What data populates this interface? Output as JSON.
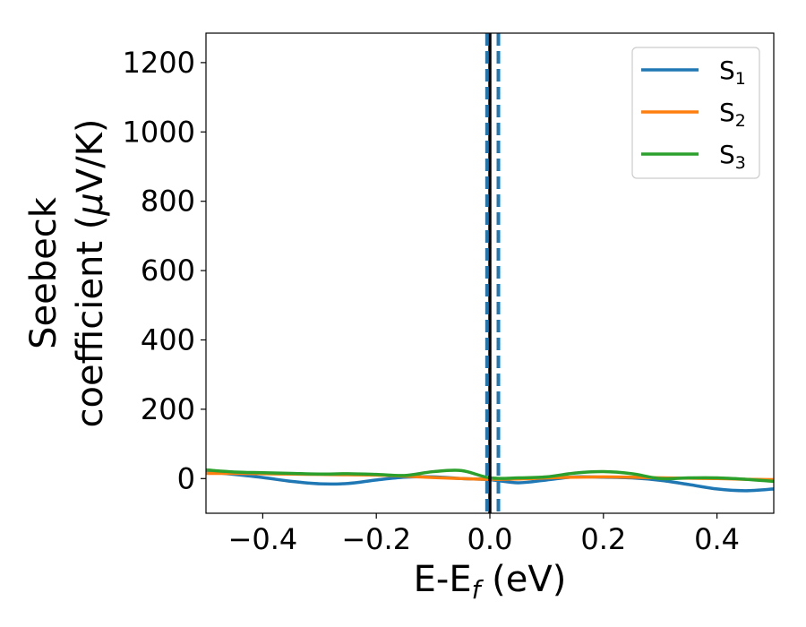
{
  "chart_data": {
    "type": "line",
    "title": "",
    "xlabel": {
      "main": "E-E",
      "sub": "f",
      "rest": " (eV)"
    },
    "ylabel": {
      "line1": "Seebeck",
      "line2_prefix": "coefficient  (",
      "line2_mu": "μ",
      "line2_suffix": "V/K)"
    },
    "xlim": [
      -0.5,
      0.5
    ],
    "ylim": [
      -100,
      1285
    ],
    "xticks": [
      -0.4,
      -0.2,
      0.0,
      0.2,
      0.4
    ],
    "xtick_labels": [
      "−0.4",
      "−0.2",
      "0.0",
      "0.2",
      "0.4"
    ],
    "yticks": [
      0,
      200,
      400,
      600,
      800,
      1000,
      1200
    ],
    "ytick_labels": [
      "0",
      "200",
      "400",
      "600",
      "800",
      "1000",
      "1200"
    ],
    "grid": false,
    "legend_position": "top-right",
    "series": [
      {
        "name": {
          "base": "S",
          "sub": "1"
        },
        "color": "#1f77b4",
        "x": [
          -0.5,
          -0.45,
          -0.4,
          -0.35,
          -0.3,
          -0.25,
          -0.2,
          -0.15,
          -0.1,
          -0.05,
          0.0,
          0.05,
          0.1,
          0.15,
          0.2,
          0.25,
          0.3,
          0.35,
          0.4,
          0.45,
          0.5
        ],
        "y": [
          20,
          12,
          3,
          -8,
          -15,
          -14,
          -4,
          4,
          5,
          0,
          -3,
          -12,
          -4,
          5,
          4,
          2,
          -5,
          -17,
          -30,
          -35,
          -30
        ]
      },
      {
        "name": {
          "base": "S",
          "sub": "2"
        },
        "color": "#ff7f0e",
        "x": [
          -0.5,
          -0.45,
          -0.4,
          -0.35,
          -0.3,
          -0.25,
          -0.2,
          -0.15,
          -0.1,
          -0.05,
          0.0,
          0.05,
          0.1,
          0.15,
          0.2,
          0.25,
          0.3,
          0.35,
          0.4,
          0.45,
          0.5
        ],
        "y": [
          15,
          15,
          14,
          13,
          12,
          11,
          10,
          7,
          3,
          0,
          -2,
          -1,
          2,
          4,
          5,
          4,
          2,
          1,
          0,
          -2,
          -3
        ]
      },
      {
        "name": {
          "base": "S",
          "sub": "3"
        },
        "color": "#2ca02c",
        "x": [
          -0.5,
          -0.45,
          -0.4,
          -0.35,
          -0.3,
          -0.25,
          -0.2,
          -0.15,
          -0.1,
          -0.05,
          0.0,
          0.05,
          0.1,
          0.15,
          0.2,
          0.25,
          0.3,
          0.35,
          0.4,
          0.45,
          0.5
        ],
        "y": [
          25,
          19,
          17,
          15,
          13,
          14,
          12,
          9,
          20,
          23,
          2,
          2,
          5,
          16,
          20,
          14,
          0,
          2,
          2,
          -2,
          -8
        ]
      }
    ],
    "vertical_lines": [
      {
        "x": 0.0,
        "color": "#000000",
        "style": "solid"
      },
      {
        "x": -0.005,
        "color": "#1f77b4",
        "style": "dashed"
      },
      {
        "x": 0.015,
        "color": "#1f77b4",
        "style": "dashed"
      }
    ]
  }
}
